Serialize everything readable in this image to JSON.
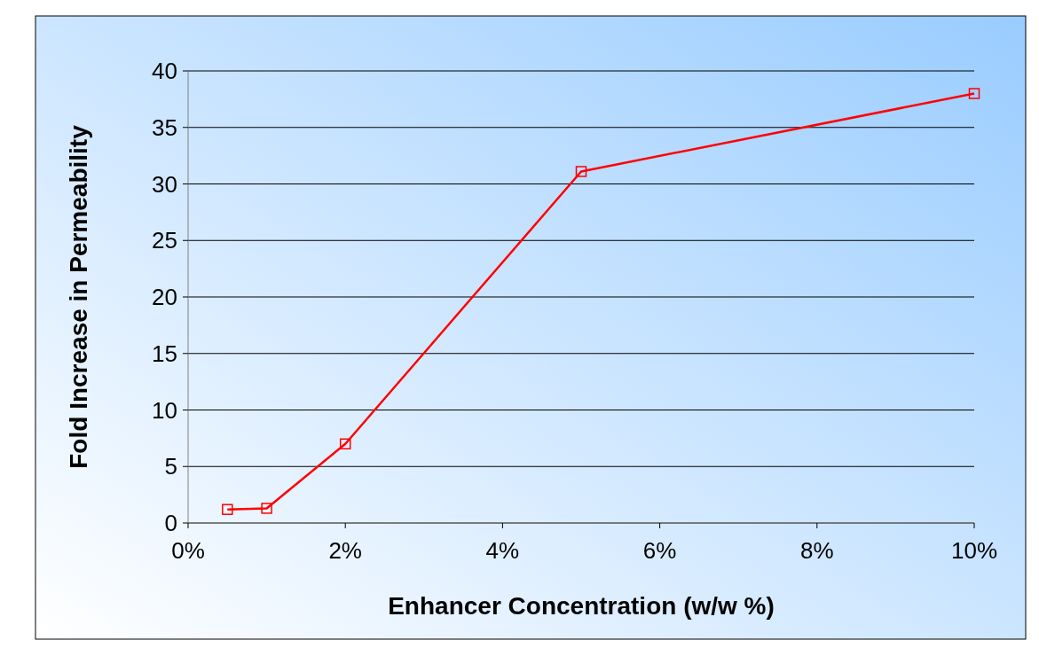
{
  "chart_data": {
    "type": "line",
    "xlabel": "Enhancer Concentration (w/w %)",
    "ylabel": "Fold Increase in Permeability",
    "x": [
      0.5,
      1,
      2,
      5,
      10
    ],
    "series": [
      {
        "color": "#ff0000",
        "values": [
          1.2,
          1.3,
          7.0,
          31.1,
          38.0
        ]
      }
    ],
    "xlim": [
      0,
      10
    ],
    "xticks": [
      {
        "value": 0,
        "label": "0%"
      },
      {
        "value": 2,
        "label": "2%"
      },
      {
        "value": 4,
        "label": "4%"
      },
      {
        "value": 6,
        "label": "6%"
      },
      {
        "value": 8,
        "label": "8%"
      },
      {
        "value": 10,
        "label": "10%"
      }
    ],
    "ylim": [
      0,
      40
    ],
    "yticks": [
      0,
      5,
      10,
      15,
      20,
      25,
      30,
      35,
      40
    ],
    "grid": "y",
    "marker": "square",
    "line_style": "solid"
  }
}
